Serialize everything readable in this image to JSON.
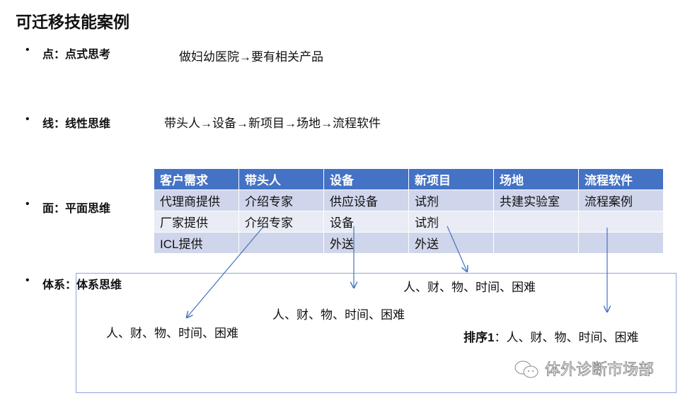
{
  "title": "可迁移技能案例",
  "bullets": [
    {
      "label": "点：点式思考",
      "text": "做妇幼医院→要有相关产品"
    },
    {
      "label": "线：线性思维",
      "text": "带头人→设备→新项目→场地→流程软件"
    },
    {
      "label": "面：平面思维"
    },
    {
      "label": "体系：体系思维"
    }
  ],
  "table": {
    "headers": [
      "客户需求",
      "带头人",
      "设备",
      "新项目",
      "场地",
      "流程软件"
    ],
    "rows": [
      [
        "代理商提供",
        "介绍专家",
        "供应设备",
        "试剂",
        "共建实验室",
        "流程案例"
      ],
      [
        "厂家提供",
        "介绍专家",
        "设备",
        "试剂",
        "",
        ""
      ],
      [
        "ICL提供",
        "",
        "外送",
        "外送",
        "",
        ""
      ]
    ]
  },
  "system": {
    "text1": "人、财、物、时间、困难",
    "text2": "人、财、物、时间、困难",
    "text3": "人、财、物、时间、困难",
    "sort_label": "排序1",
    "sort_text": "：人、财、物、时间、困难"
  },
  "watermark": "体外诊断市场部",
  "colors": {
    "header": "#4472c4",
    "row_dark": "#cfd5ea",
    "row_light": "#e9ebf5",
    "arrow": "#4472c4"
  }
}
